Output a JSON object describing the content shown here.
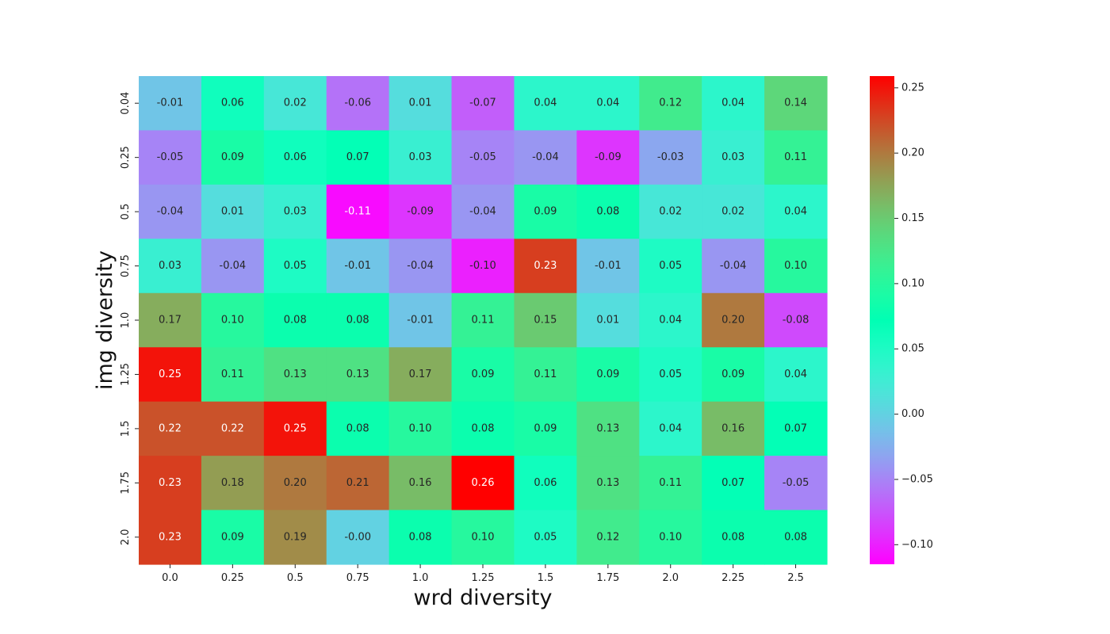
{
  "chart_data": {
    "type": "heatmap",
    "title": "",
    "xlabel": "wrd diversity",
    "ylabel": "img diversity",
    "x_categories": [
      "0.0",
      "0.25",
      "0.5",
      "0.75",
      "1.0",
      "1.25",
      "1.5",
      "1.75",
      "2.0",
      "2.25",
      "2.5"
    ],
    "y_categories": [
      "0.04",
      "0.25",
      "0.5",
      "0.75",
      "1.0",
      "1.25",
      "1.5",
      "1.75",
      "2.0"
    ],
    "values": [
      [
        -0.01,
        0.06,
        0.02,
        -0.06,
        0.01,
        -0.07,
        0.04,
        0.04,
        0.12,
        0.04,
        0.14
      ],
      [
        -0.05,
        0.09,
        0.06,
        0.07,
        0.03,
        -0.05,
        -0.04,
        -0.09,
        -0.03,
        0.03,
        0.11
      ],
      [
        -0.04,
        0.01,
        0.03,
        -0.11,
        -0.09,
        -0.04,
        0.09,
        0.08,
        0.02,
        0.02,
        0.04
      ],
      [
        0.03,
        -0.04,
        0.05,
        -0.01,
        -0.04,
        -0.1,
        0.23,
        -0.01,
        0.05,
        -0.04,
        0.1
      ],
      [
        0.17,
        0.1,
        0.08,
        0.08,
        -0.01,
        0.11,
        0.15,
        0.01,
        0.04,
        0.2,
        -0.08
      ],
      [
        0.25,
        0.11,
        0.13,
        0.13,
        0.17,
        0.09,
        0.11,
        0.09,
        0.05,
        0.09,
        0.04
      ],
      [
        0.22,
        0.22,
        0.25,
        0.08,
        0.1,
        0.08,
        0.09,
        0.13,
        0.04,
        0.16,
        0.07
      ],
      [
        0.23,
        0.18,
        0.2,
        0.21,
        0.16,
        0.26,
        0.06,
        0.13,
        0.11,
        0.07,
        -0.05
      ],
      [
        0.23,
        0.09,
        0.19,
        -0.0,
        0.08,
        0.1,
        0.05,
        0.12,
        0.1,
        0.08,
        0.08
      ]
    ],
    "cell_labels": [
      [
        "-0.01",
        "0.06",
        "0.02",
        "-0.06",
        "0.01",
        "-0.07",
        "0.04",
        "0.04",
        "0.12",
        "0.04",
        "0.14"
      ],
      [
        "-0.05",
        "0.09",
        "0.06",
        "0.07",
        "0.03",
        "-0.05",
        "-0.04",
        "-0.09",
        "-0.03",
        "0.03",
        "0.11"
      ],
      [
        "-0.04",
        "0.01",
        "0.03",
        "-0.11",
        "-0.09",
        "-0.04",
        "0.09",
        "0.08",
        "0.02",
        "0.02",
        "0.04"
      ],
      [
        "0.03",
        "-0.04",
        "0.05",
        "-0.01",
        "-0.04",
        "-0.10",
        "0.23",
        "-0.01",
        "0.05",
        "-0.04",
        "0.10"
      ],
      [
        "0.17",
        "0.10",
        "0.08",
        "0.08",
        "-0.01",
        "0.11",
        "0.15",
        "0.01",
        "0.04",
        "0.20",
        "-0.08"
      ],
      [
        "0.25",
        "0.11",
        "0.13",
        "0.13",
        "0.17",
        "0.09",
        "0.11",
        "0.09",
        "0.05",
        "0.09",
        "0.04"
      ],
      [
        "0.22",
        "0.22",
        "0.25",
        "0.08",
        "0.10",
        "0.08",
        "0.09",
        "0.13",
        "0.04",
        "0.16",
        "0.07"
      ],
      [
        "0.23",
        "0.18",
        "0.20",
        "0.21",
        "0.16",
        "0.26",
        "0.06",
        "0.13",
        "0.11",
        "0.07",
        "-0.05"
      ],
      [
        "0.23",
        "0.09",
        "0.19",
        "-0.00",
        "0.08",
        "0.10",
        "0.05",
        "0.12",
        "0.10",
        "0.08",
        "0.08"
      ]
    ],
    "colormap": "rainbow",
    "vmin": -0.115,
    "vmax": 0.259,
    "colorbar": {
      "ticks": [
        -0.1,
        -0.05,
        0.0,
        0.05,
        0.1,
        0.15,
        0.2,
        0.25
      ],
      "tick_labels": [
        "−0.10",
        "−0.05",
        "0.00",
        "0.05",
        "0.10",
        "0.15",
        "0.20",
        "0.25"
      ],
      "position": "right"
    }
  }
}
